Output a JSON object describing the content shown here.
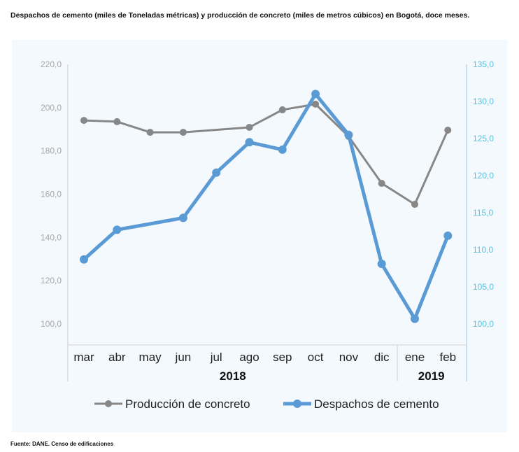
{
  "title": "Despachos de cemento (miles de Toneladas métricas) y producción de concreto (miles de metros cúbicos) en Bogotá, doce meses.",
  "source": "Fuente: DANE. Censo de edificaciones",
  "chart_data": {
    "type": "line",
    "categories": [
      "mar",
      "abr",
      "may",
      "jun",
      "jul",
      "ago",
      "sep",
      "oct",
      "nov",
      "dic",
      "ene",
      "feb"
    ],
    "years": [
      {
        "label": "2018",
        "from": 0,
        "to": 9
      },
      {
        "label": "2019",
        "from": 10,
        "to": 11
      }
    ],
    "y_left": {
      "min": 100,
      "max": 220,
      "ticks": [
        "100,0",
        "120,0",
        "140,0",
        "160,0",
        "180,0",
        "200,0",
        "220,0"
      ]
    },
    "y_right": {
      "min": 100,
      "max": 135,
      "ticks": [
        "100,0",
        "105,0",
        "110,0",
        "115,0",
        "120,0",
        "125,0",
        "130,0",
        "135,0"
      ]
    },
    "series": [
      {
        "name": "Producción de concreto",
        "axis": "left",
        "color": "#878787",
        "values": [
          194.1,
          193.5,
          188.6,
          188.6,
          null,
          190.9,
          199.0,
          201.6,
          186.7,
          165.0,
          155.3,
          189.6
        ]
      },
      {
        "name": "Despachos de cemento",
        "axis": "right",
        "color": "#5b9bd5",
        "values": [
          108.7,
          112.7,
          null,
          114.3,
          120.4,
          124.5,
          123.5,
          131.0,
          125.5,
          108.1,
          100.7,
          111.9
        ]
      }
    ],
    "legend": "bottom"
  }
}
